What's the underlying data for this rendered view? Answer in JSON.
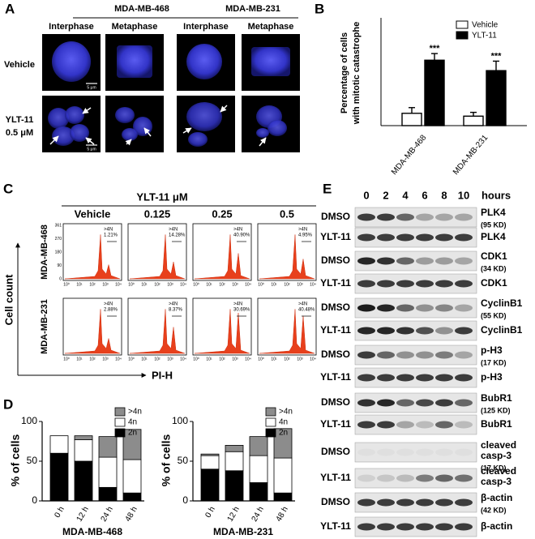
{
  "panels": {
    "A": {
      "letter": "A",
      "cell_lines": [
        "MDA-MB-468",
        "MDA-MB-231"
      ],
      "phases": [
        "Interphase",
        "Metaphase",
        "Interphase",
        "Metaphase"
      ],
      "treatments": [
        "Vehicle",
        "YLT-11"
      ],
      "dose": "0.5 μM",
      "scale_bar": "5 μm"
    },
    "B": {
      "letter": "B"
    },
    "C": {
      "letter": "C",
      "title": "YLT-11 μM",
      "conditions": [
        "Vehicle",
        "0.125",
        "0.25",
        "0.5"
      ],
      "cell_lines": [
        "MDA-MB-468",
        "MDA-MB-231"
      ],
      "gate": ">4N",
      "percentages": [
        [
          "1.21%",
          "14.28%",
          "40.90%",
          "4.95%"
        ],
        [
          "2.88%",
          "8.37%",
          "30.69%",
          "40.48%"
        ]
      ],
      "y_label": "Cell count",
      "x_label": "PI-H",
      "x_tick_labels": [
        "10⁰",
        "10¹",
        "10²",
        "10³",
        "10⁴"
      ],
      "y_tick_labels": [
        "0",
        "90",
        "180",
        "270",
        "361"
      ]
    },
    "D": {
      "letter": "D"
    },
    "E": {
      "letter": "E",
      "time_points": [
        "0",
        "2",
        "4",
        "6",
        "8",
        "10"
      ],
      "time_unit": "hours",
      "rows": [
        {
          "treatment": "DMSO",
          "protein": "PLK4",
          "mw": "(95 KD)"
        },
        {
          "treatment": "YLT-11",
          "protein": "PLK4"
        },
        {
          "treatment": "DMSO",
          "protein": "CDK1",
          "mw": "(34 KD)"
        },
        {
          "treatment": "YLT-11",
          "protein": "CDK1"
        },
        {
          "treatment": "DMSO",
          "protein": "CyclinB1",
          "mw": "(55 KD)"
        },
        {
          "treatment": "YLT-11",
          "protein": "CyclinB1"
        },
        {
          "treatment": "DMSO",
          "protein": "p-H3",
          "mw": "(17 KD)"
        },
        {
          "treatment": "YLT-11",
          "protein": "p-H3"
        },
        {
          "treatment": "DMSO",
          "protein": "BubR1",
          "mw": "(125 KD)"
        },
        {
          "treatment": "YLT-11",
          "protein": "BubR1"
        },
        {
          "treatment": "DMSO",
          "protein": [
            "cleaved",
            "casp-3"
          ],
          "mw": "(17 KD)"
        },
        {
          "treatment": "YLT-11",
          "protein": [
            "cleaved",
            "casp-3"
          ]
        },
        {
          "treatment": "DMSO",
          "protein": "β-actin",
          "mw": "(42 KD)"
        },
        {
          "treatment": "YLT-11",
          "protein": "β-actin"
        }
      ]
    }
  },
  "chart_data": [
    {
      "type": "bar",
      "y_label": [
        "Percentage of cells",
        "with mitotic catastrophe"
      ],
      "categories": [
        "MDA-MB-468",
        "MDA-MB-231"
      ],
      "ylim": [
        0,
        100
      ],
      "series": [
        {
          "name": "Vehicle",
          "color": "#ffffff",
          "values": [
            13,
            10
          ],
          "errors": [
            6,
            4
          ]
        },
        {
          "name": "YLT-11",
          "color": "#000000",
          "values": [
            69,
            58
          ],
          "errors": [
            7,
            10
          ],
          "annotations": [
            "***",
            "***"
          ]
        }
      ]
    },
    {
      "type": "stacked_bar",
      "title": "MDA-MB-468",
      "y_label": "% of cells",
      "categories": [
        "0 h",
        "12 h",
        "24 h",
        "48 h"
      ],
      "ylim": [
        0,
        100
      ],
      "yticks": [
        0,
        50,
        100
      ],
      "series": [
        {
          "name": "2n",
          "color": "#000000",
          "values": [
            60,
            50,
            17,
            10
          ]
        },
        {
          "name": "4n",
          "color": "#ffffff",
          "values": [
            22,
            27,
            38,
            42
          ]
        },
        {
          "name": ">4n",
          "color": "#8c8c8c",
          "values": [
            0,
            5,
            26,
            38
          ]
        }
      ]
    },
    {
      "type": "stacked_bar",
      "title": "MDA-MB-231",
      "y_label": "% of cells",
      "categories": [
        "0 h",
        "12 h",
        "24 h",
        "48 h"
      ],
      "ylim": [
        0,
        100
      ],
      "yticks": [
        0,
        50,
        100
      ],
      "series": [
        {
          "name": "2n",
          "color": "#000000",
          "values": [
            40,
            38,
            23,
            10
          ]
        },
        {
          "name": "4n",
          "color": "#ffffff",
          "values": [
            17,
            24,
            34,
            44
          ]
        },
        {
          "name": ">4n",
          "color": "#8c8c8c",
          "values": [
            2,
            8,
            24,
            37
          ]
        }
      ]
    }
  ]
}
